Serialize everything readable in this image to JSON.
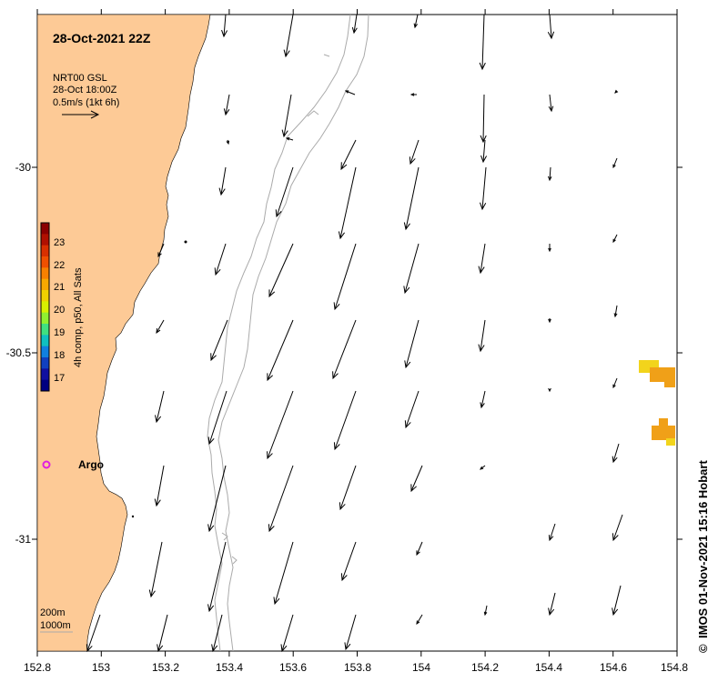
{
  "map": {
    "title": "28-Oct-2021 22Z",
    "x_ticks": [
      "152.8",
      "153",
      "153.2",
      "153.4",
      "153.6",
      "153.8",
      "154",
      "154.2",
      "154.4",
      "154.6",
      "154.8"
    ],
    "y_ticks": [
      "-30",
      "-30.5",
      "-31"
    ],
    "legend": {
      "product": "NRT00 GSL",
      "time": "28-Oct 18:00Z",
      "scale": "0.5m/s (1kt 6h)"
    },
    "colorbar": {
      "label": "4h comp, p50, All Sats",
      "ticks": [
        "23",
        "22",
        "21",
        "20",
        "19",
        "18",
        "17"
      ]
    },
    "argo_label": "Argo",
    "depth_legend": {
      "line1": "200m",
      "line2": "1000m"
    },
    "credit": "IMOS 01-Nov-2021 15:16 Hobart",
    "copyright_symbol": "©",
    "colors": {
      "land": "#fdca96",
      "contour": "#aaaaaa",
      "argo": "#e020e0",
      "sst_warm": "#f0a018",
      "sst_yellow": "#f2d41c"
    }
  }
}
